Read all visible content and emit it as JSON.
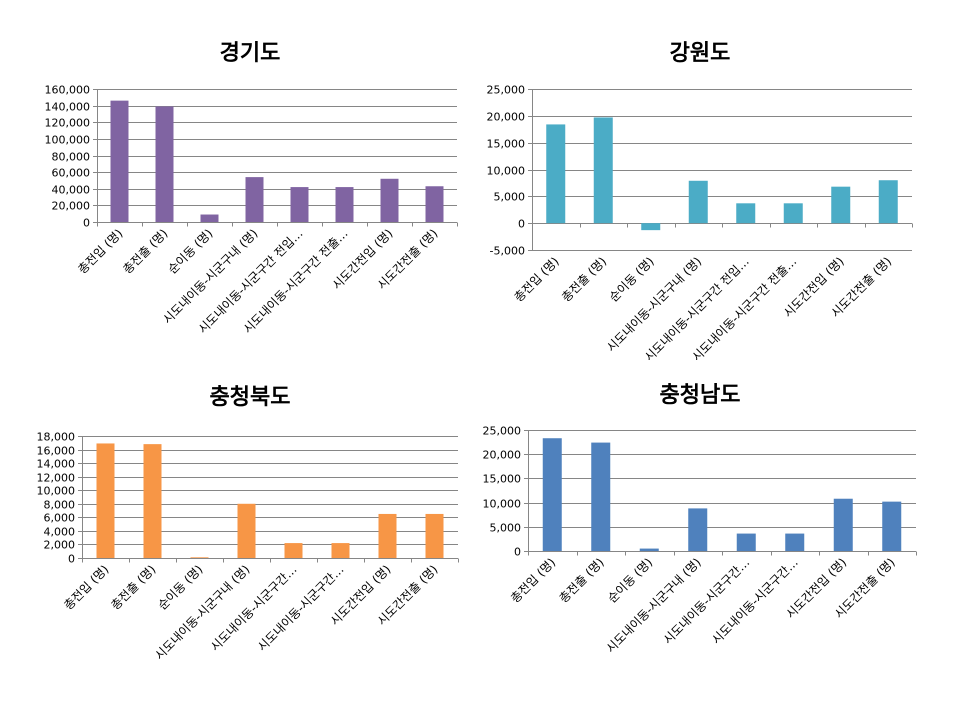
{
  "chart_data": [
    {
      "type": "bar",
      "title": "경기도",
      "color": "#8064A2",
      "categories": [
        "총전입 (명)",
        "총전출 (명)",
        "순이동 (명)",
        "시도내이동-시군구내 (명)",
        "시도내이동-시군구간 전입…",
        "시도내이동-시군구간 전출…",
        "시도간전입 (명)",
        "시도간전출 (명)"
      ],
      "values": [
        146000,
        139000,
        9000,
        54000,
        42000,
        42000,
        52000,
        43000
      ],
      "ylim": [
        0,
        160000
      ],
      "yticks": [
        "160,000",
        "140,000",
        "120,000",
        "100,000",
        "80,000",
        "60,000",
        "40,000",
        "20,000",
        "0"
      ],
      "xlabel": "",
      "ylabel": ""
    },
    {
      "type": "bar",
      "title": "강원도",
      "color": "#4BACC6",
      "categories": [
        "총전입 (명)",
        "총전출 (명)",
        "순이동 (명)",
        "시도내이동-시군구내 (명)",
        "시도내이동-시군구간 전입…",
        "시도내이동-시군구간 전출…",
        "시도간전입 (명)",
        "시도간전출 (명)"
      ],
      "values": [
        18400,
        19700,
        -1300,
        7900,
        3700,
        3700,
        6800,
        8000
      ],
      "ylim": [
        -5000,
        25000
      ],
      "yticks": [
        "25,000",
        "20,000",
        "15,000",
        "10,000",
        "5,000",
        "0",
        "-5,000"
      ],
      "xlabel": "",
      "ylabel": ""
    },
    {
      "type": "bar",
      "title": "충청북도",
      "color": "#F79646",
      "categories": [
        "총전입 (명)",
        "총전출 (명)",
        "순이동 (명)",
        "시도내이동-시군구내 (명)",
        "시도내이동-시군구간…",
        "시도내이동-시군구간…",
        "시도간전입 (명)",
        "시도간전출 (명)"
      ],
      "values": [
        16900,
        16800,
        100,
        8000,
        2200,
        2200,
        6500,
        6500
      ],
      "ylim": [
        0,
        18000
      ],
      "yticks": [
        "18,000",
        "16,000",
        "14,000",
        "12,000",
        "10,000",
        "8,000",
        "6,000",
        "4,000",
        "2,000",
        "0"
      ],
      "xlabel": "",
      "ylabel": ""
    },
    {
      "type": "bar",
      "title": "충청남도",
      "color": "#4F81BD",
      "categories": [
        "총전입 (명)",
        "총전출 (명)",
        "순이동 (명)",
        "시도내이동-시군구내 (명)",
        "시도내이동-시군구간…",
        "시도내이동-시군구간…",
        "시도간전입 (명)",
        "시도간전출 (명)"
      ],
      "values": [
        23300,
        22400,
        500,
        8800,
        3600,
        3600,
        10800,
        10200
      ],
      "ylim": [
        0,
        25000
      ],
      "yticks": [
        "25,000",
        "20,000",
        "15,000",
        "10,000",
        "5,000",
        "0"
      ],
      "xlabel": "",
      "ylabel": ""
    }
  ]
}
